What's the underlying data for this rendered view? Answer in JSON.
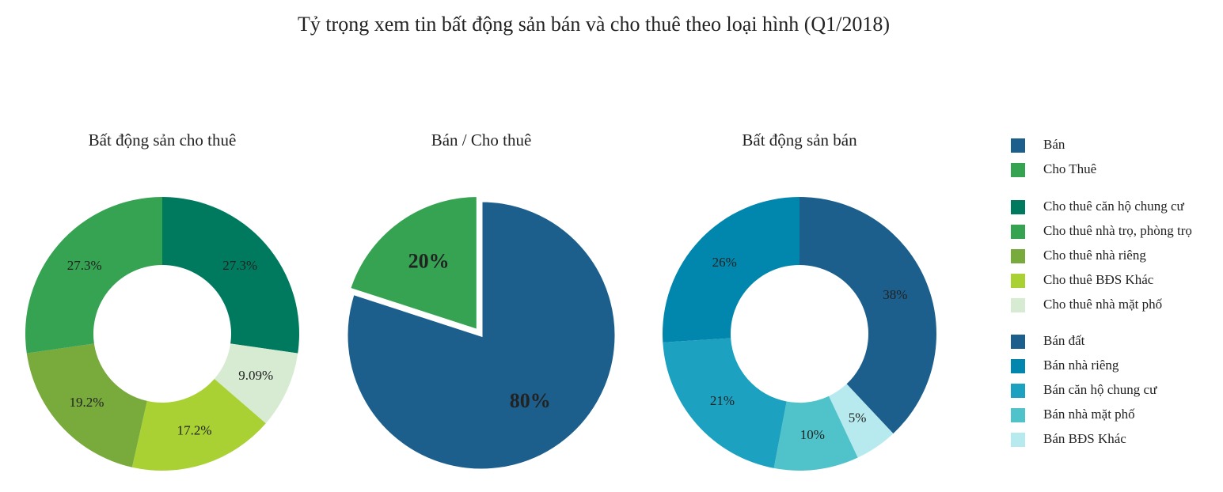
{
  "title": "Tỷ trọng xem tin bất động sản bán và cho thuê theo loại hình (Q1/2018)",
  "chart_data": [
    {
      "type": "donut",
      "title": "Bất động sản cho thuê",
      "categories": [
        "Cho thuê căn hộ chung cư",
        "Cho thuê nhà mặt phố",
        "Cho thuê BĐS Khác",
        "Cho thuê nhà riêng",
        "Cho thuê nhà trọ, phòng trọ"
      ],
      "values": [
        27.3,
        9.09,
        17.2,
        19.2,
        27.3
      ],
      "value_labels": [
        "27.3%",
        "9.09%",
        "17.2%",
        "19.2%",
        "27.3%"
      ],
      "colors": [
        "#007a5e",
        "#d6ebd2",
        "#a9d134",
        "#78aa3c",
        "#35a352"
      ]
    },
    {
      "type": "pie",
      "title": "Bán / Cho thuê",
      "categories": [
        "Bán",
        "Cho Thuê"
      ],
      "values": [
        80,
        20
      ],
      "value_labels": [
        "80%",
        "20%"
      ],
      "colors": [
        "#1c5f8c",
        "#35a352"
      ]
    },
    {
      "type": "donut",
      "title": "Bất động sản bán",
      "categories": [
        "Bán đất",
        "Bán BĐS Khác",
        "Bán nhà mặt phố",
        "Bán căn hộ chung cư",
        "Bán nhà riêng"
      ],
      "values": [
        38,
        5,
        10,
        21,
        26
      ],
      "value_labels": [
        "38%",
        "5%",
        "10%",
        "21%",
        "26%"
      ],
      "colors": [
        "#1c5f8c",
        "#b7eaee",
        "#50c3ca",
        "#1ca2c0",
        "#0186ad"
      ]
    }
  ]
}
